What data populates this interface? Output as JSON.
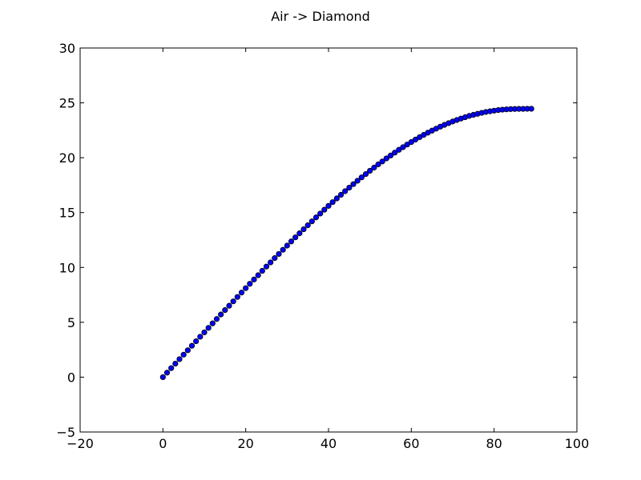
{
  "chart_data": {
    "type": "scatter",
    "title": "Air -> Diamond",
    "xlabel": "",
    "ylabel": "",
    "xlim": [
      -20,
      100
    ],
    "ylim": [
      -5,
      30
    ],
    "xticks": [
      "−20",
      "0",
      "20",
      "40",
      "60",
      "80",
      "100"
    ],
    "yticks": [
      "−5",
      "0",
      "5",
      "10",
      "15",
      "20",
      "25",
      "30"
    ],
    "grid": false,
    "marker_color": "#0000ff",
    "marker_edge": "#000000",
    "x": [
      0,
      1,
      2,
      3,
      4,
      5,
      6,
      7,
      8,
      9,
      10,
      11,
      12,
      13,
      14,
      15,
      16,
      17,
      18,
      19,
      20,
      21,
      22,
      23,
      24,
      25,
      26,
      27,
      28,
      29,
      30,
      31,
      32,
      33,
      34,
      35,
      36,
      37,
      38,
      39,
      40,
      41,
      42,
      43,
      44,
      45,
      46,
      47,
      48,
      49,
      50,
      51,
      52,
      53,
      54,
      55,
      56,
      57,
      58,
      59,
      60,
      61,
      62,
      63,
      64,
      65,
      66,
      67,
      68,
      69,
      70,
      71,
      72,
      73,
      74,
      75,
      76,
      77,
      78,
      79,
      80,
      81,
      82,
      83,
      84,
      85,
      86,
      87,
      88,
      89
    ],
    "y": [
      0,
      0.41,
      0.82,
      1.23,
      1.64,
      2.05,
      2.45,
      2.86,
      3.27,
      3.68,
      4.08,
      4.49,
      4.9,
      5.3,
      5.71,
      6.11,
      6.51,
      6.91,
      7.31,
      7.71,
      8.11,
      8.51,
      8.9,
      9.29,
      9.69,
      10.08,
      10.46,
      10.85,
      11.23,
      11.61,
      11.99,
      12.37,
      12.74,
      13.11,
      13.48,
      13.84,
      14.2,
      14.56,
      14.91,
      15.26,
      15.61,
      15.95,
      16.29,
      16.62,
      16.95,
      17.27,
      17.59,
      17.9,
      18.21,
      18.51,
      18.81,
      19.1,
      19.39,
      19.66,
      19.94,
      20.2,
      20.46,
      20.72,
      20.96,
      21.2,
      21.43,
      21.65,
      21.87,
      22.08,
      22.28,
      22.47,
      22.65,
      22.83,
      22.99,
      23.15,
      23.3,
      23.44,
      23.57,
      23.69,
      23.81,
      23.91,
      24.0,
      24.09,
      24.17,
      24.23,
      24.29,
      24.34,
      24.38,
      24.41,
      24.43,
      24.44,
      24.45,
      24.45,
      24.46,
      24.46
    ]
  }
}
